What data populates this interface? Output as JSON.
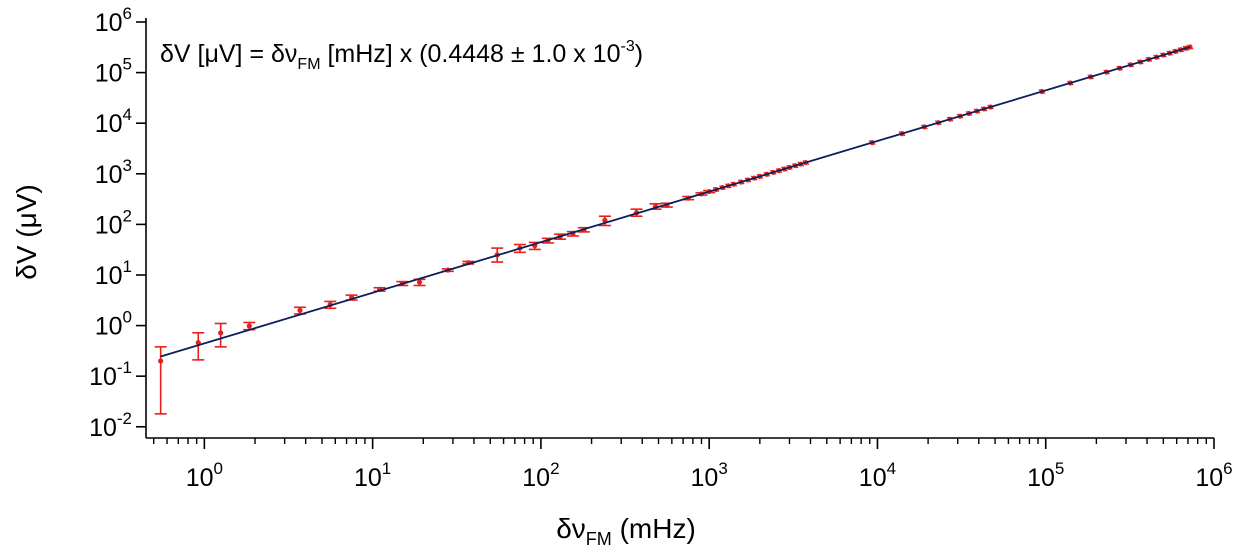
{
  "chart_data": {
    "type": "scatter",
    "x_scale": "log",
    "y_scale": "log",
    "xlim": [
      0.45,
      1000000
    ],
    "ylim": [
      0.006,
      1000000
    ],
    "xlabel": {
      "main": "δν",
      "sub": "FM",
      "tail": " (mHz)"
    },
    "ylabel": "δV (μV)",
    "x_ticks": [
      {
        "base": "10",
        "exp": "0",
        "value": 1
      },
      {
        "base": "10",
        "exp": "1",
        "value": 10
      },
      {
        "base": "10",
        "exp": "2",
        "value": 100
      },
      {
        "base": "10",
        "exp": "3",
        "value": 1000
      },
      {
        "base": "10",
        "exp": "4",
        "value": 10000
      },
      {
        "base": "10",
        "exp": "5",
        "value": 100000
      },
      {
        "base": "10",
        "exp": "6",
        "value": 1000000
      }
    ],
    "y_ticks": [
      {
        "base": "10",
        "exp": "-2",
        "value": 0.01
      },
      {
        "base": "10",
        "exp": "-1",
        "value": 0.1
      },
      {
        "base": "10",
        "exp": "0",
        "value": 1
      },
      {
        "base": "10",
        "exp": "1",
        "value": 10
      },
      {
        "base": "10",
        "exp": "2",
        "value": 100
      },
      {
        "base": "10",
        "exp": "3",
        "value": 1000
      },
      {
        "base": "10",
        "exp": "4",
        "value": 10000
      },
      {
        "base": "10",
        "exp": "5",
        "value": 100000
      },
      {
        "base": "10",
        "exp": "6",
        "value": 1000000
      }
    ],
    "annotation": {
      "p1": "δV [μV] = δν",
      "sub": "FM",
      "p2": " [mHz] x (0.4448 ± 1.0 x 10",
      "sup": "-3",
      "p3": ")"
    },
    "fit": {
      "slope": 0.4448,
      "x_range": [
        0.55,
        720000
      ]
    },
    "series": [
      {
        "points": [
          {
            "x": 0.55,
            "y": 0.2,
            "lo": 0.018,
            "hi": 0.38
          },
          {
            "x": 0.92,
            "y": 0.46,
            "lo": 0.21,
            "hi": 0.72
          },
          {
            "x": 1.25,
            "y": 0.72,
            "lo": 0.38,
            "hi": 1.1
          },
          {
            "x": 1.85,
            "y": 0.98,
            "lo": 0.83,
            "hi": 1.15
          },
          {
            "x": 3.7,
            "y": 2.0,
            "lo": 1.7,
            "hi": 2.3
          },
          {
            "x": 5.6,
            "y": 2.6,
            "lo": 2.2,
            "hi": 3.0
          },
          {
            "x": 7.5,
            "y": 3.6,
            "lo": 3.2,
            "hi": 4.0
          },
          {
            "x": 11,
            "y": 5.2,
            "lo": 4.8,
            "hi": 5.6
          },
          {
            "x": 15,
            "y": 6.8,
            "lo": 6.2,
            "hi": 7.4
          },
          {
            "x": 19,
            "y": 7.2,
            "lo": 6.2,
            "hi": 8.2
          },
          {
            "x": 28,
            "y": 12.5,
            "lo": 11.8,
            "hi": 13.2
          },
          {
            "x": 37,
            "y": 17.5,
            "lo": 16.5,
            "hi": 18.5
          },
          {
            "x": 55,
            "y": 25,
            "lo": 18,
            "hi": 34
          },
          {
            "x": 75,
            "y": 34,
            "lo": 28,
            "hi": 40
          },
          {
            "x": 92,
            "y": 38,
            "lo": 32,
            "hi": 44
          },
          {
            "x": 110,
            "y": 48,
            "lo": 43,
            "hi": 53
          },
          {
            "x": 130,
            "y": 57,
            "lo": 51,
            "hi": 64
          },
          {
            "x": 155,
            "y": 65,
            "lo": 59,
            "hi": 72
          },
          {
            "x": 180,
            "y": 78,
            "lo": 71,
            "hi": 86
          },
          {
            "x": 240,
            "y": 120,
            "lo": 95,
            "hi": 145
          },
          {
            "x": 370,
            "y": 170,
            "lo": 145,
            "hi": 200
          },
          {
            "x": 480,
            "y": 225,
            "lo": 200,
            "hi": 255
          },
          {
            "x": 560,
            "y": 240,
            "lo": 220,
            "hi": 262
          },
          {
            "x": 750,
            "y": 330,
            "lo": 308,
            "hi": 355
          },
          {
            "x": 900,
            "y": 400,
            "lo": 380,
            "hi": 420
          },
          {
            "x": 1000,
            "y": 445,
            "lo": 425,
            "hi": 465
          },
          {
            "x": 1100,
            "y": 490
          },
          {
            "x": 1200,
            "y": 534
          },
          {
            "x": 1300,
            "y": 578
          },
          {
            "x": 1400,
            "y": 623
          },
          {
            "x": 1550,
            "y": 689
          },
          {
            "x": 1700,
            "y": 756
          },
          {
            "x": 1850,
            "y": 823
          },
          {
            "x": 2000,
            "y": 890
          },
          {
            "x": 2200,
            "y": 979
          },
          {
            "x": 2400,
            "y": 1068
          },
          {
            "x": 2600,
            "y": 1156
          },
          {
            "x": 2800,
            "y": 1245
          },
          {
            "x": 3000,
            "y": 1334
          },
          {
            "x": 3250,
            "y": 1446
          },
          {
            "x": 3500,
            "y": 1557
          },
          {
            "x": 3750,
            "y": 1668
          },
          {
            "x": 9300,
            "y": 4136
          },
          {
            "x": 14000,
            "y": 6227
          },
          {
            "x": 19000,
            "y": 8451
          },
          {
            "x": 23000,
            "y": 10230
          },
          {
            "x": 27000,
            "y": 12010
          },
          {
            "x": 31000,
            "y": 13789
          },
          {
            "x": 35000,
            "y": 15568
          },
          {
            "x": 39000,
            "y": 17347
          },
          {
            "x": 43000,
            "y": 19126
          },
          {
            "x": 47000,
            "y": 20906
          },
          {
            "x": 95000,
            "y": 42256
          },
          {
            "x": 140000,
            "y": 62272
          },
          {
            "x": 185000,
            "y": 82288
          },
          {
            "x": 230000,
            "y": 102304
          },
          {
            "x": 275000,
            "y": 122320
          },
          {
            "x": 320000,
            "y": 142336
          },
          {
            "x": 365000,
            "y": 162352
          },
          {
            "x": 410000,
            "y": 182368
          },
          {
            "x": 455000,
            "y": 202384
          },
          {
            "x": 500000,
            "y": 222400
          },
          {
            "x": 545000,
            "y": 242416
          },
          {
            "x": 590000,
            "y": 262432
          },
          {
            "x": 635000,
            "y": 282448
          },
          {
            "x": 680000,
            "y": 302464
          },
          {
            "x": 720000,
            "y": 320256
          }
        ]
      }
    ],
    "colors": {
      "line": "#0b1f5c",
      "points": "#e8201a",
      "annotation": "#0b1f5c",
      "axes": "#000000"
    }
  }
}
